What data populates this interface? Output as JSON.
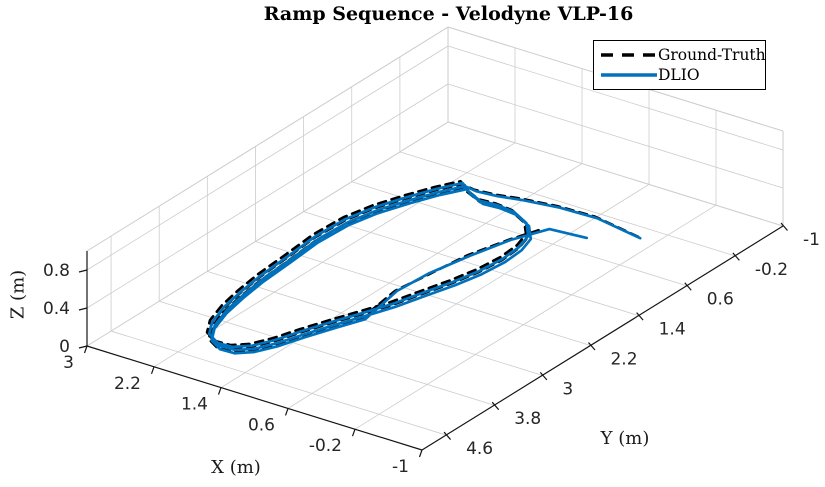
{
  "title": "Ramp Sequence - Velodyne VLP-16",
  "legend": {
    "items": [
      {
        "label": "Ground-Truth",
        "color": "#000000",
        "style": "dashed"
      },
      {
        "label": "DLIO",
        "color": "#0072BD",
        "style": "solid"
      }
    ]
  },
  "axes": {
    "x": {
      "label": "X (m)",
      "range": [
        -1,
        3
      ],
      "ticks": [
        "3",
        "2.2",
        "1.4",
        "0.6",
        "-0.2",
        "-1"
      ],
      "tick_values": [
        3,
        2.2,
        1.4,
        0.6,
        -0.2,
        -1
      ]
    },
    "y": {
      "label": "Y (m)",
      "range": [
        -1,
        5
      ],
      "ticks": [
        "4.6",
        "3.8",
        "3",
        "2.2",
        "1.4",
        "0.6",
        "-0.2",
        "-1"
      ],
      "tick_values": [
        4.6,
        3.8,
        3,
        2.2,
        1.4,
        0.6,
        -0.2,
        -1
      ]
    },
    "z": {
      "label": "Z (m)",
      "range": [
        0,
        1
      ],
      "ticks": [
        "0",
        "0.4",
        "0.8"
      ],
      "tick_values": [
        0,
        0.4,
        0.8
      ]
    },
    "grid": true
  },
  "chart_data": {
    "type": "line",
    "is_3d": true,
    "title": "Ramp Sequence - Velodyne VLP-16",
    "xlabel": "X (m)",
    "ylabel": "Y (m)",
    "zlabel": "Z (m)",
    "xlim": [
      -1,
      3
    ],
    "ylim": [
      -1,
      5
    ],
    "zlim": [
      0,
      1
    ],
    "legend_position": "northeast",
    "description": "Robot starts near the origin (0,0,0), drives to the circuit, completes 3 laps of an elongated oval loop, then exits back toward the origin. Ground-Truth (dashed black) and DLIO (solid blue) estimates nearly overlap. z ~ 0 over the whole path.",
    "series": [
      {
        "name": "Ground-Truth",
        "color": "#000000",
        "line": "dashed",
        "width": 2.7,
        "z": 0,
        "offset": [
          0.035,
          -0.015
        ],
        "entry": [
          [
            -0.02,
            0.01
          ],
          [
            0.58,
            -0.11
          ],
          [
            1.01,
            -0.09
          ],
          [
            1.4,
            -0.02
          ],
          [
            1.66,
            0.05
          ],
          [
            1.89,
            0.08
          ]
        ],
        "loop": [
          [
            2.04,
            0.05
          ],
          [
            2.17,
            0.29
          ],
          [
            2.3,
            0.6
          ],
          [
            2.43,
            0.96
          ],
          [
            2.51,
            1.34
          ],
          [
            2.53,
            1.81
          ],
          [
            2.49,
            2.34
          ],
          [
            2.46,
            2.83
          ],
          [
            2.41,
            3.23
          ],
          [
            2.35,
            3.58
          ],
          [
            2.25,
            3.92
          ],
          [
            2.12,
            4.15
          ],
          [
            1.94,
            4.26
          ],
          [
            1.77,
            4.25
          ],
          [
            1.63,
            4.12
          ],
          [
            1.52,
            3.89
          ],
          [
            1.42,
            3.58
          ],
          [
            1.3,
            3.25
          ],
          [
            1.17,
            2.92
          ],
          [
            1.05,
            2.6
          ],
          [
            0.95,
            2.23
          ],
          [
            0.85,
            1.87
          ],
          [
            0.78,
            1.53
          ],
          [
            0.75,
            1.18
          ],
          [
            0.77,
            0.88
          ],
          [
            0.84,
            0.63
          ],
          [
            1.02,
            0.41
          ],
          [
            1.26,
            0.28
          ],
          [
            1.48,
            0.25
          ],
          [
            1.67,
            0.27
          ],
          [
            1.9,
            0.16
          ]
        ],
        "lap_offsets": [
          [
            0.05,
            -0.02
          ],
          [
            0.1,
            -0.06
          ],
          [
            0.0,
            0.05
          ]
        ],
        "final_lap_end_index": 18,
        "exit": [
          [
            1.22,
            2.32
          ],
          [
            1.1,
            1.29
          ],
          [
            0.97,
            0.78
          ],
          [
            0.84,
            0.4
          ]
        ]
      },
      {
        "name": "DLIO",
        "color": "#0072BD",
        "line": "solid",
        "width": 2.7,
        "z": 0,
        "offset": [
          0,
          0
        ],
        "entry": [
          [
            -0.02,
            0.01
          ],
          [
            0.58,
            -0.11
          ],
          [
            1.01,
            -0.09
          ],
          [
            1.4,
            -0.02
          ],
          [
            1.66,
            0.05
          ],
          [
            1.89,
            0.08
          ]
        ],
        "loop": [
          [
            2.04,
            0.05
          ],
          [
            2.17,
            0.29
          ],
          [
            2.3,
            0.6
          ],
          [
            2.43,
            0.96
          ],
          [
            2.51,
            1.34
          ],
          [
            2.53,
            1.81
          ],
          [
            2.49,
            2.34
          ],
          [
            2.46,
            2.83
          ],
          [
            2.41,
            3.23
          ],
          [
            2.35,
            3.58
          ],
          [
            2.25,
            3.92
          ],
          [
            2.12,
            4.15
          ],
          [
            1.94,
            4.26
          ],
          [
            1.77,
            4.25
          ],
          [
            1.63,
            4.12
          ],
          [
            1.52,
            3.89
          ],
          [
            1.42,
            3.58
          ],
          [
            1.3,
            3.25
          ],
          [
            1.17,
            2.92
          ],
          [
            1.05,
            2.6
          ],
          [
            0.95,
            2.23
          ],
          [
            0.85,
            1.87
          ],
          [
            0.78,
            1.53
          ],
          [
            0.75,
            1.18
          ],
          [
            0.77,
            0.88
          ],
          [
            0.84,
            0.63
          ],
          [
            1.02,
            0.41
          ],
          [
            1.26,
            0.28
          ],
          [
            1.48,
            0.25
          ],
          [
            1.67,
            0.27
          ],
          [
            1.9,
            0.16
          ]
        ],
        "lap_offsets": [
          [
            0,
            0
          ],
          [
            0.06,
            -0.04
          ],
          [
            -0.04,
            0.06
          ]
        ],
        "final_lap_end_index": 18,
        "exit": [
          [
            1.24,
            2.3
          ],
          [
            1.21,
            1.8
          ],
          [
            1.11,
            1.27
          ],
          [
            0.99,
            0.76
          ],
          [
            0.82,
            0.35
          ],
          [
            0.41,
            0.3
          ]
        ]
      }
    ]
  },
  "style": {
    "grid_color": "#cccccc",
    "axis_color": "#151515",
    "tick_label_color": "#262626",
    "background": "#ffffff"
  }
}
